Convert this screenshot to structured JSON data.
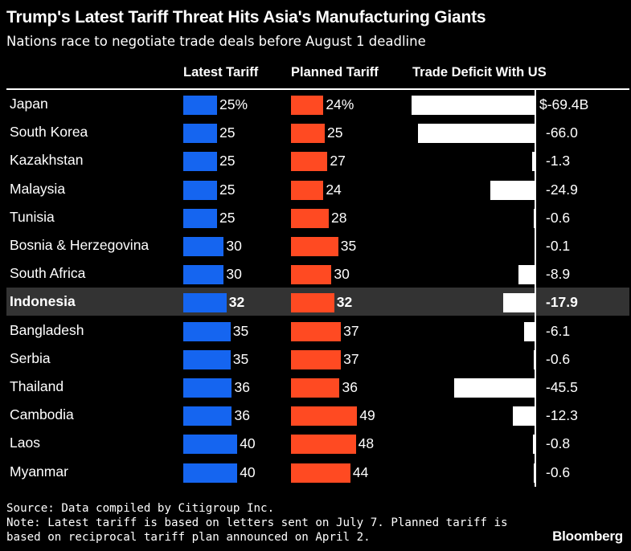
{
  "chart_data": {
    "type": "bar",
    "title": "Trump's Latest Tariff Threat Hits Asia's Manufacturing Giants",
    "subtitle": "Nations race to negotiate trade deals before August 1 deadline",
    "columns": [
      "Latest Tariff",
      "Planned Tariff",
      "Trade Deficit With US"
    ],
    "categories": [
      "Japan",
      "South Korea",
      "Kazakhstan",
      "Malaysia",
      "Tunisia",
      "Bosnia & Herzegovina",
      "South Africa",
      "Indonesia",
      "Bangladesh",
      "Serbia",
      "Thailand",
      "Cambodia",
      "Laos",
      "Myanmar"
    ],
    "highlight": "Indonesia",
    "series": [
      {
        "name": "Latest Tariff",
        "color": "#1565f0",
        "values": [
          25,
          25,
          25,
          25,
          25,
          30,
          30,
          32,
          35,
          35,
          36,
          36,
          40,
          40
        ],
        "labels": [
          "25%",
          "25",
          "25",
          "25",
          "25",
          "30",
          "30",
          "32",
          "35",
          "35",
          "36",
          "36",
          "40",
          "40"
        ]
      },
      {
        "name": "Planned Tariff",
        "color": "#ff4a22",
        "values": [
          24,
          25,
          27,
          24,
          28,
          35,
          30,
          32,
          37,
          37,
          36,
          49,
          48,
          44
        ],
        "labels": [
          "24%",
          "25",
          "27",
          "24",
          "28",
          "35",
          "30",
          "32",
          "37",
          "37",
          "36",
          "49",
          "48",
          "44"
        ]
      },
      {
        "name": "Trade Deficit With US",
        "color": "#ffffff",
        "values": [
          -69.4,
          -66.0,
          -1.3,
          -24.9,
          -0.6,
          -0.1,
          -8.9,
          -17.9,
          -6.1,
          -0.6,
          -45.5,
          -12.3,
          -0.8,
          -0.6
        ],
        "labels": [
          "$-69.4B",
          "-66.0",
          "-1.3",
          "-24.9",
          "-0.6",
          "-0.1",
          "-8.9",
          "-17.9",
          "-6.1",
          "-0.6",
          "-45.5",
          "-12.3",
          "-0.8",
          "-0.6"
        ]
      }
    ]
  },
  "footer": {
    "source": "Source: Data compiled by Citigroup Inc.",
    "note_line1": "Note: Latest tariff is based on letters sent on July 7. Planned tariff is",
    "note_line2": "based on reciprocal tariff plan announced on April 2."
  },
  "brand": "Bloomberg"
}
